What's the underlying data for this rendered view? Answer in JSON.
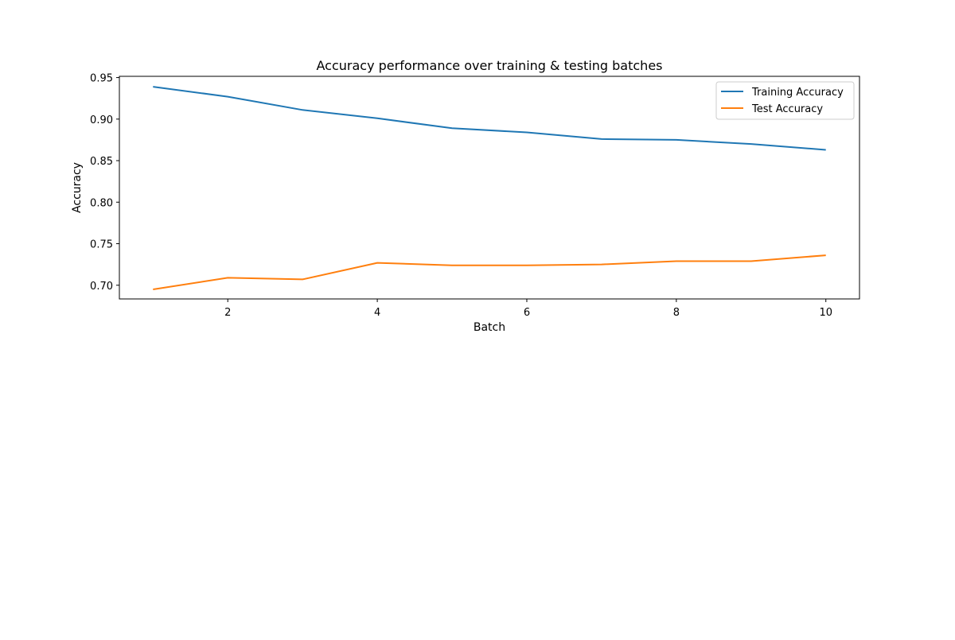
{
  "chart_data": {
    "type": "line",
    "title": "Accuracy performance over training & testing batches",
    "xlabel": "Batch",
    "ylabel": "Accuracy",
    "x": [
      1,
      2,
      3,
      4,
      5,
      6,
      7,
      8,
      9,
      10
    ],
    "xlim": [
      0.55,
      10.45
    ],
    "ylim": [
      0.6835,
      0.9515
    ],
    "xticks": [
      2,
      4,
      6,
      8,
      10
    ],
    "xtick_labels": [
      "2",
      "4",
      "6",
      "8",
      "10"
    ],
    "yticks": [
      0.7,
      0.75,
      0.8,
      0.85,
      0.9,
      0.95
    ],
    "ytick_labels": [
      "0.70",
      "0.75",
      "0.80",
      "0.85",
      "0.90",
      "0.95"
    ],
    "grid": false,
    "legend_position": "top-right",
    "series": [
      {
        "name": "Training Accuracy",
        "color": "#1f77b4",
        "values": [
          0.939,
          0.927,
          0.911,
          0.901,
          0.889,
          0.884,
          0.876,
          0.875,
          0.87,
          0.863
        ]
      },
      {
        "name": "Test Accuracy",
        "color": "#ff7f0e",
        "values": [
          0.695,
          0.709,
          0.707,
          0.727,
          0.724,
          0.724,
          0.725,
          0.729,
          0.729,
          0.736
        ]
      }
    ]
  }
}
